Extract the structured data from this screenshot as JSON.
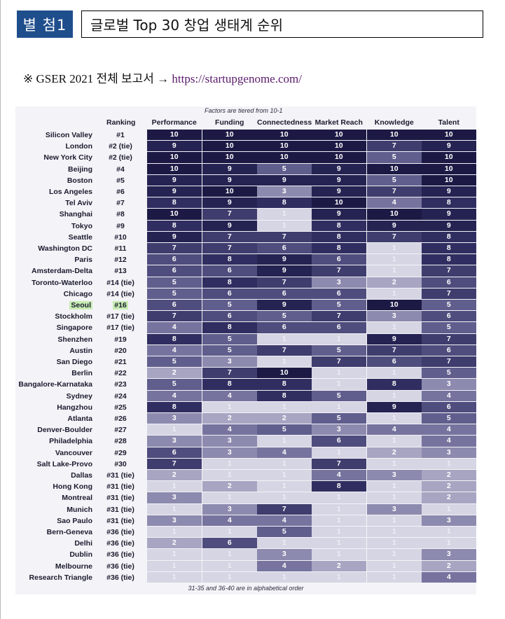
{
  "header": {
    "badge": "별 첨1",
    "title": "글로벌 Top 30 창업 생태계 순위"
  },
  "note": {
    "prefix": "※ GSER 2021 전체 보고서 → ",
    "link": "https://startupgenome.com/"
  },
  "chart_data": {
    "type": "table",
    "top_note": "Factors are tiered from 10-1",
    "bottom_note": "31-35 and 36-40 are in alphabetical order",
    "columns": [
      "Ranking",
      "Performance",
      "Funding",
      "Connectedness",
      "Market Reach",
      "Knowledge",
      "Talent"
    ],
    "highlight_row": "Seoul",
    "rows": [
      {
        "city": "Silicon Valley",
        "rank": "#1",
        "values": [
          10,
          10,
          10,
          10,
          10,
          10
        ]
      },
      {
        "city": "London",
        "rank": "#2 (tie)",
        "values": [
          9,
          10,
          10,
          10,
          7,
          9
        ]
      },
      {
        "city": "New York City",
        "rank": "#2 (tie)",
        "values": [
          10,
          10,
          10,
          10,
          5,
          10
        ]
      },
      {
        "city": "Beijing",
        "rank": "#4",
        "values": [
          10,
          9,
          5,
          9,
          10,
          10
        ]
      },
      {
        "city": "Boston",
        "rank": "#5",
        "values": [
          9,
          9,
          9,
          9,
          5,
          10
        ]
      },
      {
        "city": "Los Angeles",
        "rank": "#6",
        "values": [
          9,
          10,
          3,
          9,
          7,
          9
        ]
      },
      {
        "city": "Tel Aviv",
        "rank": "#7",
        "values": [
          8,
          9,
          8,
          10,
          4,
          8
        ]
      },
      {
        "city": "Shanghai",
        "rank": "#8",
        "values": [
          10,
          7,
          1,
          9,
          10,
          9
        ]
      },
      {
        "city": "Tokyo",
        "rank": "#9",
        "values": [
          8,
          9,
          1,
          8,
          9,
          9
        ]
      },
      {
        "city": "Seattle",
        "rank": "#10",
        "values": [
          9,
          7,
          7,
          8,
          7,
          8
        ]
      },
      {
        "city": "Washington DC",
        "rank": "#11",
        "values": [
          7,
          7,
          6,
          8,
          1,
          8
        ]
      },
      {
        "city": "Paris",
        "rank": "#12",
        "values": [
          6,
          8,
          9,
          6,
          1,
          8
        ]
      },
      {
        "city": "Amsterdam-Delta",
        "rank": "#13",
        "values": [
          6,
          6,
          9,
          7,
          1,
          7
        ]
      },
      {
        "city": "Toronto-Waterloo",
        "rank": "#14 (tie)",
        "values": [
          5,
          8,
          7,
          3,
          2,
          6
        ]
      },
      {
        "city": "Chicago",
        "rank": "#14 (tie)",
        "values": [
          5,
          6,
          6,
          6,
          1,
          7
        ]
      },
      {
        "city": "Seoul",
        "rank": "#16",
        "values": [
          6,
          5,
          9,
          5,
          10,
          5
        ]
      },
      {
        "city": "Stockholm",
        "rank": "#17 (tie)",
        "values": [
          7,
          6,
          5,
          7,
          3,
          6
        ]
      },
      {
        "city": "Singapore",
        "rank": "#17 (tie)",
        "values": [
          4,
          8,
          6,
          6,
          1,
          5
        ]
      },
      {
        "city": "Shenzhen",
        "rank": "#19",
        "values": [
          8,
          5,
          1,
          1,
          9,
          7
        ]
      },
      {
        "city": "Austin",
        "rank": "#20",
        "values": [
          4,
          5,
          7,
          5,
          7,
          6
        ]
      },
      {
        "city": "San Diego",
        "rank": "#21",
        "values": [
          5,
          3,
          1,
          7,
          6,
          7
        ]
      },
      {
        "city": "Berlin",
        "rank": "#22",
        "values": [
          2,
          7,
          10,
          1,
          1,
          5
        ]
      },
      {
        "city": "Bangalore-Karnataka",
        "rank": "#23",
        "values": [
          5,
          8,
          8,
          1,
          8,
          3
        ]
      },
      {
        "city": "Sydney",
        "rank": "#24",
        "values": [
          4,
          4,
          8,
          5,
          1,
          4
        ]
      },
      {
        "city": "Hangzhou",
        "rank": "#25",
        "values": [
          8,
          1,
          1,
          1,
          9,
          6
        ]
      },
      {
        "city": "Atlanta",
        "rank": "#26",
        "values": [
          3,
          2,
          2,
          5,
          1,
          5
        ]
      },
      {
        "city": "Denver-Boulder",
        "rank": "#27",
        "values": [
          1,
          4,
          5,
          3,
          4,
          4
        ]
      },
      {
        "city": "Philadelphia",
        "rank": "#28",
        "values": [
          3,
          3,
          1,
          6,
          1,
          4
        ]
      },
      {
        "city": "Vancouver",
        "rank": "#29",
        "values": [
          6,
          3,
          4,
          1,
          2,
          3
        ]
      },
      {
        "city": "Salt Lake-Provo",
        "rank": "#30",
        "values": [
          7,
          1,
          1,
          7,
          1,
          1
        ]
      },
      {
        "city": "Dallas",
        "rank": "#31 (tie)",
        "values": [
          2,
          1,
          1,
          4,
          3,
          2
        ]
      },
      {
        "city": "Hong Kong",
        "rank": "#31 (tie)",
        "values": [
          1,
          2,
          1,
          8,
          1,
          2
        ]
      },
      {
        "city": "Montreal",
        "rank": "#31 (tie)",
        "values": [
          3,
          1,
          1,
          1,
          1,
          2
        ]
      },
      {
        "city": "Munich",
        "rank": "#31 (tie)",
        "values": [
          1,
          3,
          7,
          1,
          3,
          1
        ]
      },
      {
        "city": "Sao Paulo",
        "rank": "#31 (tie)",
        "values": [
          3,
          4,
          4,
          1,
          1,
          3
        ]
      },
      {
        "city": "Bern-Geneva",
        "rank": "#36 (tie)",
        "values": [
          1,
          1,
          5,
          1,
          1,
          1
        ]
      },
      {
        "city": "Delhi",
        "rank": "#36 (tie)",
        "values": [
          2,
          6,
          1,
          1,
          1,
          1
        ]
      },
      {
        "city": "Dublin",
        "rank": "#36 (tie)",
        "values": [
          1,
          1,
          3,
          1,
          1,
          3
        ]
      },
      {
        "city": "Melbourne",
        "rank": "#36 (tie)",
        "values": [
          1,
          1,
          4,
          2,
          1,
          2
        ]
      },
      {
        "city": "Research Triangle",
        "rank": "#36 (tie)",
        "values": [
          1,
          1,
          1,
          1,
          1,
          4
        ]
      }
    ]
  }
}
